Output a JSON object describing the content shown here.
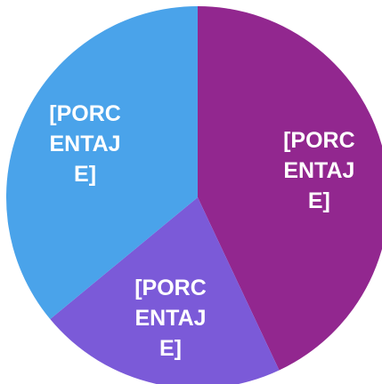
{
  "chart_data": {
    "type": "pie",
    "values": [
      43,
      21,
      36
    ],
    "value_labels": [
      "[PORCENTAJE]",
      "[PORCENTAJE]",
      "[PORCENTAJE]"
    ],
    "colors": [
      "#92278f",
      "#7b5ad8",
      "#4aa3ea"
    ]
  }
}
